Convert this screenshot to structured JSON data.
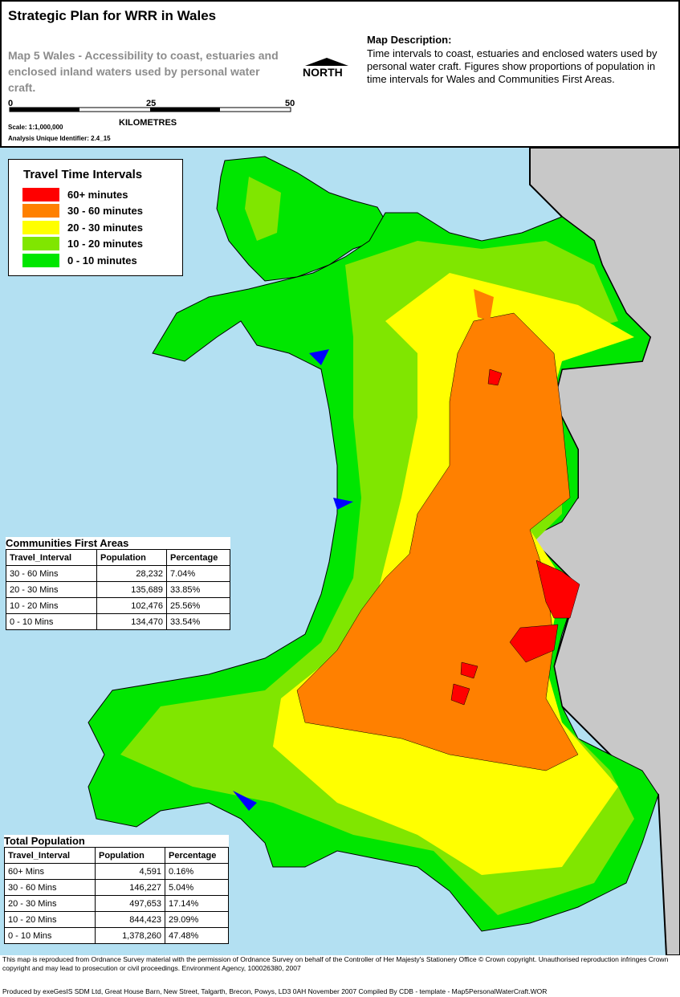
{
  "header": {
    "title": "Strategic Plan for WRR in Wales",
    "subtitle": "Map 5 Wales - Accessibility to coast, estuaries and enclosed inland waters used by personal water craft.",
    "scale_ticks": [
      "0",
      "25",
      "50"
    ],
    "scale_unit": "KILOMETRES",
    "scale": "Scale: 1:1,000,000",
    "identifier": "Analysis Unique Identifier: 2.4_15",
    "north": "NORTH",
    "description_title": "Map Description:",
    "description": "Time intervals to coast, estuaries and enclosed waters used by personal water craft. Figures show proportions of population in time intervals for Wales and Communities First Areas."
  },
  "legend": {
    "title": "Travel Time Intervals",
    "items": [
      {
        "label": "60+ minutes",
        "color": "#ff0000"
      },
      {
        "label": "30 - 60 minutes",
        "color": "#ff8000"
      },
      {
        "label": "20 - 30 minutes",
        "color": "#ffff00"
      },
      {
        "label": "10 - 20 minutes",
        "color": "#80e600"
      },
      {
        "label": "0 - 10 minutes",
        "color": "#00e600"
      }
    ]
  },
  "communities_table": {
    "title": "Communities First Areas",
    "headers": [
      "Travel_Interval",
      "Population",
      "Percentage"
    ],
    "rows": [
      [
        "30 - 60 Mins",
        "28,232",
        "7.04%"
      ],
      [
        "20 - 30 Mins",
        "135,689",
        "33.85%"
      ],
      [
        "10 - 20 Mins",
        "102,476",
        "25.56%"
      ],
      [
        "0 - 10 Mins",
        "134,470",
        "33.54%"
      ]
    ]
  },
  "total_table": {
    "title": "Total Population",
    "headers": [
      "Travel_Interval",
      "Population",
      "Percentage"
    ],
    "rows": [
      [
        "60+ Mins",
        "4,591",
        "0.16%"
      ],
      [
        "30 - 60 Mins",
        "146,227",
        "5.04%"
      ],
      [
        "20 - 30 Mins",
        "497,653",
        "17.14%"
      ],
      [
        "10 - 20 Mins",
        "844,423",
        "29.09%"
      ],
      [
        "0 - 10 Mins",
        "1,378,260",
        "47.48%"
      ]
    ]
  },
  "footer": {
    "copyright": "This map is reproduced from Ordnance Survey material with the permission of Ordnance Survey on behalf of the Controller of Her Majesty's Stationery Office © Crown copyright. Unauthorised reproduction infringes Crown copyright and may lead to prosecution or civil proceedings. Environment Agency, 100026380, 2007",
    "produced": "Produced by exeGesIS SDM Ltd, Great House Barn, New Street, Talgarth, Brecon, Powys, LD3 0AH November 2007 Compiled By CDB - template - Map5PersonalWaterCraft.WOR"
  }
}
